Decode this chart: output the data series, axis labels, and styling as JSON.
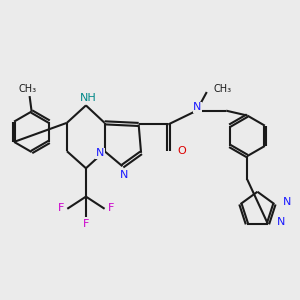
{
  "bg_color": "#ebebeb",
  "bond_color": "#1a1a1a",
  "n_color": "#1a1aff",
  "o_color": "#dd0000",
  "f_color": "#cc00cc",
  "nh_color": "#008888",
  "lw": 1.5,
  "figsize": [
    3.0,
    3.0
  ],
  "dpi": 100,
  "xlim": [
    -3.2,
    4.2
  ],
  "ylim": [
    -2.8,
    2.5
  ]
}
